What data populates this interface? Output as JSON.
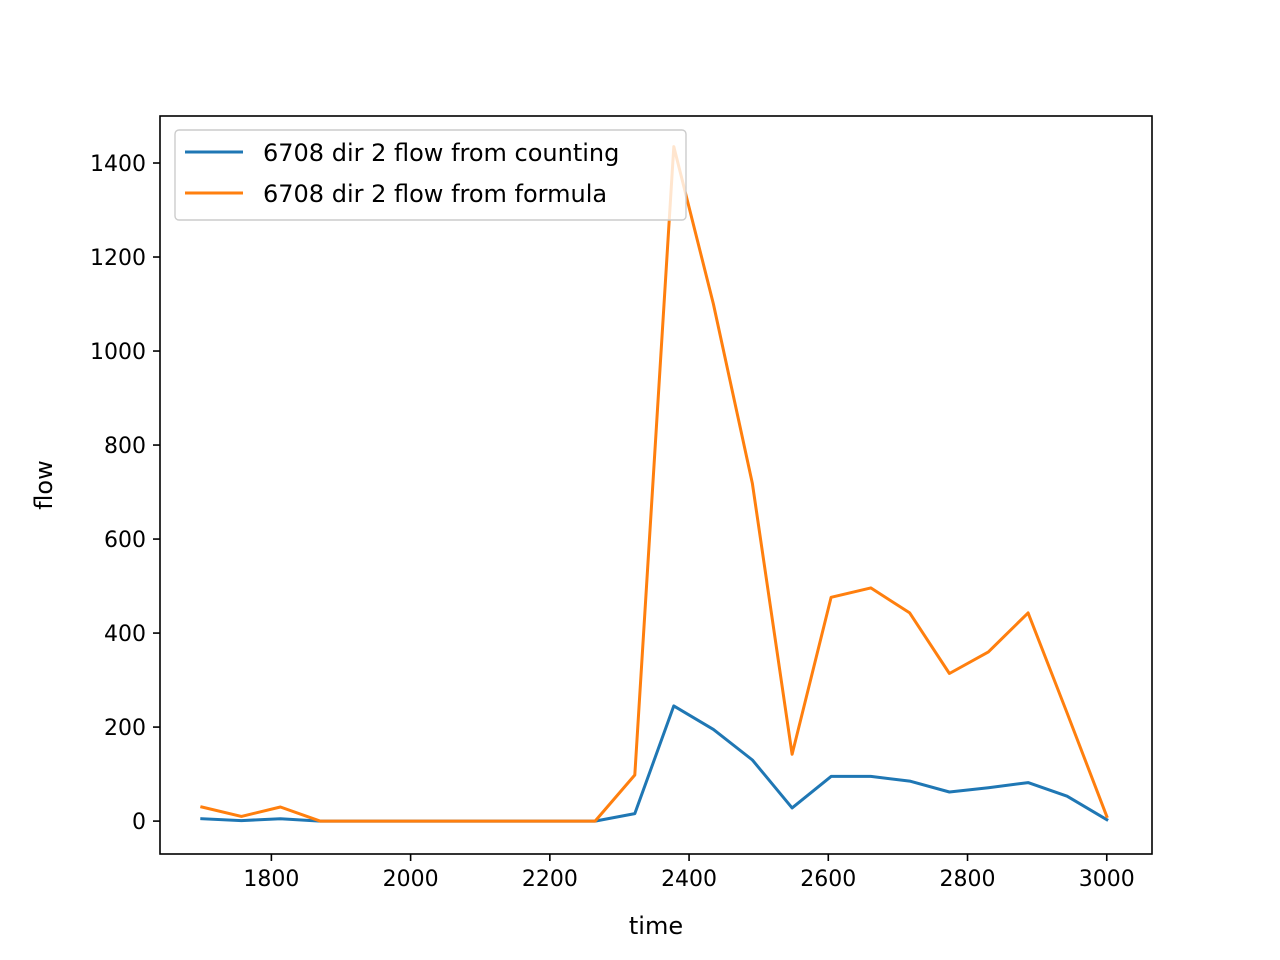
{
  "chart_data": {
    "type": "line",
    "xlabel": "time",
    "ylabel": "flow",
    "xlim": [
      1640,
      3065
    ],
    "ylim": [
      -70,
      1500
    ],
    "xticks": [
      1800,
      2000,
      2200,
      2400,
      2600,
      2800,
      3000
    ],
    "yticks": [
      0,
      200,
      400,
      600,
      800,
      1000,
      1200,
      1400
    ],
    "grid": false,
    "legend_position": "top-left",
    "x": [
      1700,
      1757,
      1813,
      1870,
      1926,
      1983,
      2039,
      2096,
      2152,
      2209,
      2265,
      2322,
      2378,
      2435,
      2491,
      2548,
      2604,
      2661,
      2717,
      2774,
      2830,
      2887,
      2943,
      3000
    ],
    "series": [
      {
        "name": "6708 dir 2 flow from counting",
        "color": "#1f77b4",
        "values": [
          5,
          1,
          5,
          0,
          0,
          0,
          0,
          0,
          0,
          0,
          0,
          16,
          245,
          195,
          130,
          28,
          95,
          95,
          85,
          62,
          71,
          82,
          53,
          3
        ]
      },
      {
        "name": "6708 dir 2 flow from formula",
        "color": "#ff7f0e",
        "values": [
          30,
          10,
          30,
          0,
          0,
          0,
          0,
          0,
          0,
          0,
          0,
          98,
          1435,
          1100,
          718,
          142,
          476,
          496,
          443,
          314,
          360,
          443,
          230,
          10
        ]
      }
    ]
  }
}
